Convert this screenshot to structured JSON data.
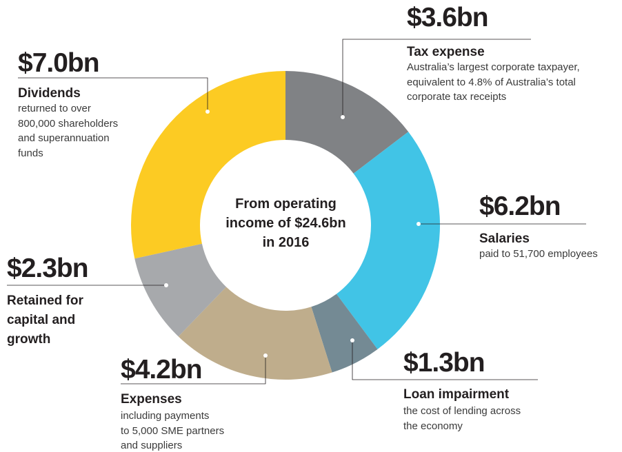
{
  "chart_data": {
    "type": "pie",
    "center_label": "From operating income of $24.6bn in 2016",
    "categories": [
      "Tax expense",
      "Salaries",
      "Loan impairment",
      "Expenses",
      "Retained for capital and growth",
      "Dividends"
    ],
    "values": [
      3.6,
      6.2,
      1.3,
      4.2,
      2.3,
      7.0
    ],
    "value_labels": [
      "$3.6bn",
      "$6.2bn",
      "$1.3bn",
      "$4.2bn",
      "$2.3bn",
      "$7.0bn"
    ],
    "descriptions": [
      [
        "Australia’s largest corporate taxpayer,",
        "equivalent to 4.8% of Australia’s total",
        "corporate tax receipts"
      ],
      [
        "paid to 51,700 employees"
      ],
      [
        "the cost of lending across",
        "the economy"
      ],
      [
        "including payments",
        "to 5,000 SME partners",
        "and suppliers"
      ],
      [],
      [
        "returned to over",
        "800,000 shareholders",
        "and superannuation",
        "funds"
      ]
    ],
    "colors": [
      "#808285",
      "#41c4e6",
      "#748a94",
      "#bfad8c",
      "#a7a9ac",
      "#fccb23"
    ]
  }
}
